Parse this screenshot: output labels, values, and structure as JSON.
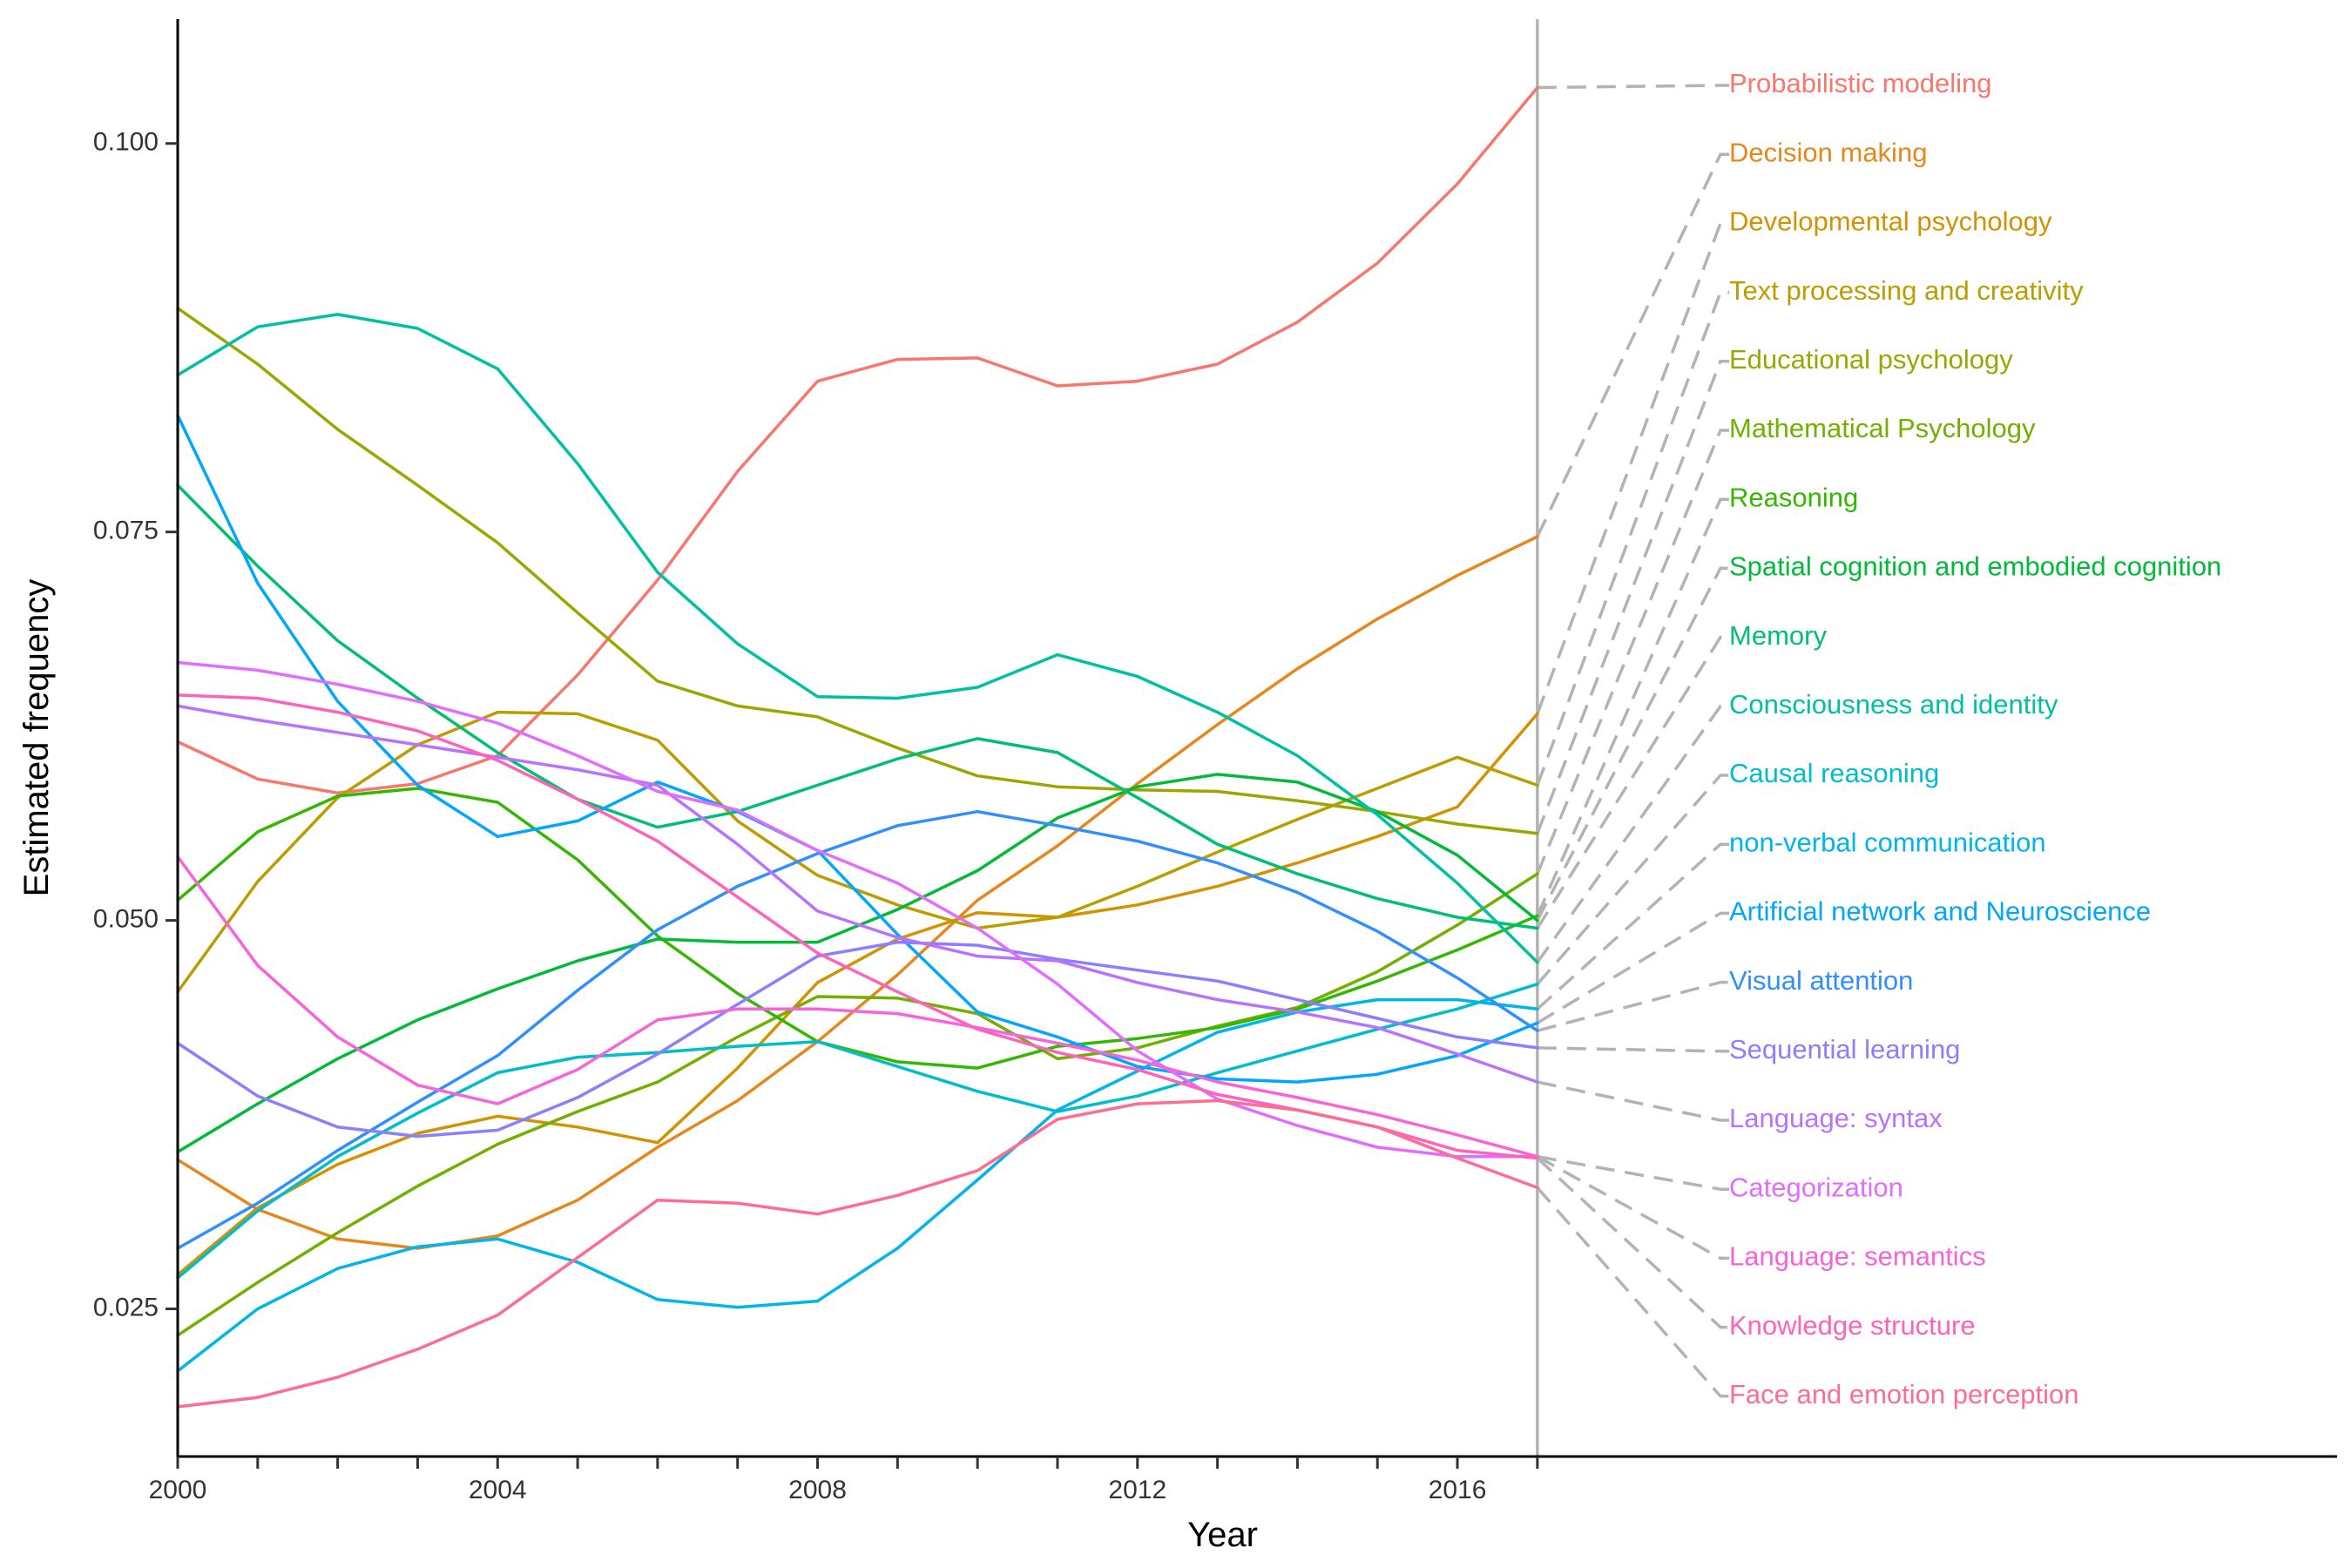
{
  "chart_data": {
    "type": "line",
    "xlabel": "Year",
    "ylabel": "Estimated frequency",
    "xlim": [
      2000,
      2027
    ],
    "ylim": [
      0.0155,
      0.108
    ],
    "xticks": [
      2000,
      2001,
      2002,
      2003,
      2004,
      2005,
      2006,
      2007,
      2008,
      2009,
      2010,
      2011,
      2012,
      2013,
      2014,
      2015,
      2016,
      2017
    ],
    "xtick_labels": [
      {
        "value": 2000,
        "label": "2000"
      },
      {
        "value": 2004,
        "label": "2004"
      },
      {
        "value": 2008,
        "label": "2008"
      },
      {
        "value": 2012,
        "label": "2012"
      },
      {
        "value": 2016,
        "label": "2016"
      }
    ],
    "ytick_labels": [
      {
        "value": 0.025,
        "label": "0.025"
      },
      {
        "value": 0.05,
        "label": "0.050"
      },
      {
        "value": 0.075,
        "label": "0.075"
      },
      {
        "value": 0.1,
        "label": "0.100"
      }
    ],
    "grid": false,
    "legend": "direct labels at right, connected by dashed leader lines",
    "reference_line": {
      "x": 2017,
      "color": "#b3b3b3"
    },
    "x": [
      2000,
      2001,
      2002,
      2003,
      2004,
      2005,
      2006,
      2007,
      2008,
      2009,
      2010,
      2011,
      2012,
      2013,
      2014,
      2015,
      2016,
      2017
    ],
    "series": [
      {
        "name": "Probabilistic modeling",
        "color": "#F8766D",
        "values": [
          0.0615,
          0.0591,
          0.0582,
          0.0588,
          0.0606,
          0.0658,
          0.0719,
          0.0789,
          0.0847,
          0.0861,
          0.0862,
          0.0844,
          0.0847,
          0.0858,
          0.0885,
          0.0923,
          0.0974,
          0.1036
        ]
      },
      {
        "name": "Decision making",
        "color": "#E7861B",
        "values": [
          0.0346,
          0.0314,
          0.0295,
          0.0289,
          0.0297,
          0.032,
          0.0354,
          0.0384,
          0.0422,
          0.0465,
          0.0513,
          0.0548,
          0.0588,
          0.0626,
          0.0662,
          0.0694,
          0.0722,
          0.0747
        ]
      },
      {
        "name": "Developmental psychology",
        "color": "#D39200",
        "values": [
          0.0272,
          0.0315,
          0.0343,
          0.0363,
          0.0374,
          0.0367,
          0.0357,
          0.0405,
          0.046,
          0.0488,
          0.0505,
          0.0502,
          0.051,
          0.0522,
          0.0537,
          0.0554,
          0.0573,
          0.0633
        ]
      },
      {
        "name": "Text processing and creativity",
        "color": "#BB9D00",
        "values": [
          0.0454,
          0.0525,
          0.0579,
          0.0613,
          0.0634,
          0.0633,
          0.0616,
          0.0564,
          0.0529,
          0.051,
          0.0495,
          0.0502,
          0.0522,
          0.0544,
          0.0565,
          0.0585,
          0.0605,
          0.0587
        ]
      },
      {
        "name": "Educational psychology",
        "color": "#9BA700",
        "values": [
          0.0894,
          0.0858,
          0.0816,
          0.078,
          0.0743,
          0.0698,
          0.0654,
          0.0638,
          0.0631,
          0.0611,
          0.0593,
          0.0586,
          0.0584,
          0.0583,
          0.0577,
          0.057,
          0.0562,
          0.0556
        ]
      },
      {
        "name": "Mathematical Psychology",
        "color": "#72B000",
        "values": [
          0.0233,
          0.0267,
          0.0299,
          0.0329,
          0.0356,
          0.0377,
          0.0396,
          0.0425,
          0.0451,
          0.045,
          0.044,
          0.0411,
          0.0418,
          0.0432,
          0.0444,
          0.0467,
          0.0497,
          0.053
        ]
      },
      {
        "name": "Reasoning",
        "color": "#34B700",
        "values": [
          0.0513,
          0.0557,
          0.058,
          0.0585,
          0.0576,
          0.0539,
          0.049,
          0.0453,
          0.0422,
          0.0409,
          0.0405,
          0.0419,
          0.0424,
          0.0431,
          0.0443,
          0.0461,
          0.0481,
          0.0503
        ]
      },
      {
        "name": "Spatial cognition and embodied cognition",
        "color": "#00BA38",
        "values": [
          0.0351,
          0.0382,
          0.0411,
          0.0436,
          0.0456,
          0.0474,
          0.0488,
          0.0486,
          0.0486,
          0.0507,
          0.0532,
          0.0566,
          0.0586,
          0.0594,
          0.0589,
          0.057,
          0.0542,
          0.05
        ]
      },
      {
        "name": "Memory",
        "color": "#00BF74",
        "values": [
          0.078,
          0.0728,
          0.068,
          0.0643,
          0.0608,
          0.0578,
          0.056,
          0.057,
          0.0587,
          0.0604,
          0.0617,
          0.0608,
          0.0579,
          0.0549,
          0.053,
          0.0514,
          0.0502,
          0.0495
        ]
      },
      {
        "name": "Consciousness and identity",
        "color": "#00C0A3",
        "values": [
          0.0851,
          0.0882,
          0.089,
          0.0881,
          0.0855,
          0.0794,
          0.0724,
          0.0678,
          0.0644,
          0.0643,
          0.065,
          0.0671,
          0.0657,
          0.0634,
          0.0606,
          0.0568,
          0.0524,
          0.0473
        ]
      },
      {
        "name": "Causal reasoning",
        "color": "#00BDCE",
        "values": [
          0.027,
          0.0313,
          0.0348,
          0.0376,
          0.0402,
          0.0412,
          0.0415,
          0.0419,
          0.0422,
          0.0406,
          0.039,
          0.0377,
          0.0387,
          0.0402,
          0.0416,
          0.043,
          0.0443,
          0.0459
        ]
      },
      {
        "name": "non-verbal communication",
        "color": "#00B5EC",
        "values": [
          0.021,
          0.025,
          0.0276,
          0.029,
          0.0295,
          0.028,
          0.0256,
          0.0251,
          0.0255,
          0.0289,
          0.0333,
          0.0378,
          0.0403,
          0.0428,
          0.0441,
          0.0449,
          0.0449,
          0.0443
        ]
      },
      {
        "name": "Artificial network and Neuroscience",
        "color": "#00A6FF",
        "values": [
          0.0825,
          0.0717,
          0.0641,
          0.0587,
          0.0554,
          0.0564,
          0.0589,
          0.057,
          0.0545,
          0.0491,
          0.0441,
          0.0425,
          0.0406,
          0.0398,
          0.0396,
          0.0401,
          0.0413,
          0.0434
        ]
      },
      {
        "name": "Visual attention",
        "color": "#2F8FFF",
        "values": [
          0.0289,
          0.0318,
          0.0352,
          0.0383,
          0.0413,
          0.0455,
          0.0494,
          0.0522,
          0.0543,
          0.0561,
          0.057,
          0.0561,
          0.0551,
          0.0537,
          0.0518,
          0.0493,
          0.0463,
          0.0429
        ]
      },
      {
        "name": "Sequential learning",
        "color": "#8C7EFF",
        "values": [
          0.0421,
          0.0387,
          0.0367,
          0.0361,
          0.0365,
          0.0386,
          0.0414,
          0.0446,
          0.0477,
          0.0486,
          0.0484,
          0.0475,
          0.0468,
          0.0461,
          0.0449,
          0.0437,
          0.0425,
          0.0418
        ]
      },
      {
        "name": "Language: syntax",
        "color": "#B872FF",
        "values": [
          0.0638,
          0.0629,
          0.0621,
          0.0613,
          0.0605,
          0.0597,
          0.0587,
          0.0549,
          0.0506,
          0.0489,
          0.0477,
          0.0474,
          0.046,
          0.0449,
          0.0441,
          0.0431,
          0.0414,
          0.0396
        ]
      },
      {
        "name": "Categorization",
        "color": "#E26CFF",
        "values": [
          0.0666,
          0.0661,
          0.0652,
          0.0641,
          0.0627,
          0.0606,
          0.0583,
          0.0571,
          0.0545,
          0.0524,
          0.0495,
          0.0459,
          0.0416,
          0.0385,
          0.0368,
          0.0354,
          0.0348,
          0.0348
        ]
      },
      {
        "name": "Language: semantics",
        "color": "#F863DC",
        "values": [
          0.0541,
          0.0471,
          0.0425,
          0.0394,
          0.0382,
          0.0404,
          0.0436,
          0.0443,
          0.0443,
          0.044,
          0.0431,
          0.0421,
          0.041,
          0.0396,
          0.0386,
          0.0375,
          0.0362,
          0.0348
        ]
      },
      {
        "name": "Knowledge structure",
        "color": "#FF62BC",
        "values": [
          0.0645,
          0.0643,
          0.0634,
          0.0622,
          0.0603,
          0.0578,
          0.0551,
          0.0515,
          0.0479,
          0.0454,
          0.043,
          0.0415,
          0.0404,
          0.0388,
          0.0378,
          0.0367,
          0.0352,
          0.0347
        ]
      },
      {
        "name": "Face and emotion perception",
        "color": "#FF6C91",
        "values": [
          0.0187,
          0.0193,
          0.0206,
          0.0224,
          0.0246,
          0.0283,
          0.032,
          0.0318,
          0.0311,
          0.0323,
          0.0339,
          0.0372,
          0.0382,
          0.0384,
          0.0378,
          0.0367,
          0.0347,
          0.0328
        ]
      }
    ]
  }
}
